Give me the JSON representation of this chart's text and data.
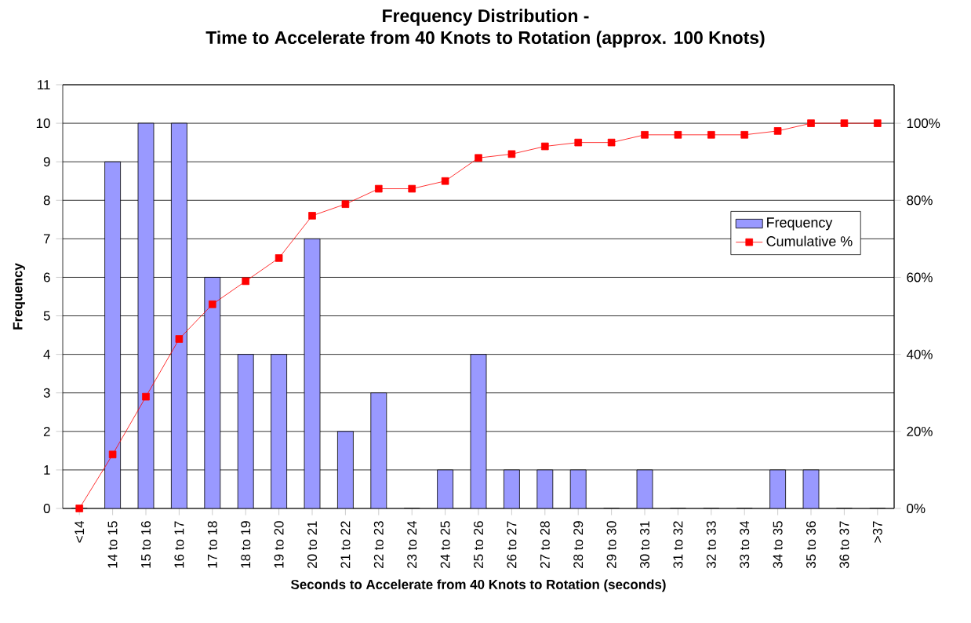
{
  "chart_data": {
    "type": "bar",
    "title": "Frequency Distribution -",
    "subtitle": "Time to Accelerate from 40 Knots to Rotation (approx. 100 Knots)",
    "xlabel": "Seconds to Accelerate from 40 Knots to Rotation (seconds)",
    "ylabel": "Frequency",
    "categories": [
      "<14",
      "14 to 15",
      "15 to 16",
      "16 to 17",
      "17 to 18",
      "18 to 19",
      "19 to 20",
      "20 to 21",
      "21 to 22",
      "22 to 23",
      "23 to 24",
      "24 to 25",
      "25 to 26",
      "26 to 27",
      "27 to 28",
      "28 to 29",
      "29 to 30",
      "30 to 31",
      "31 to 32",
      "32 to 33",
      "33 to 34",
      "34 to 35",
      "35 to 36",
      "36 to 37",
      ">37"
    ],
    "series": [
      {
        "name": "Frequency",
        "color": "#9999ff",
        "values": [
          0,
          9,
          10,
          10,
          6,
          4,
          4,
          7,
          2,
          3,
          0,
          1,
          4,
          1,
          1,
          1,
          0,
          1,
          0,
          0,
          0,
          1,
          1,
          0,
          0
        ]
      },
      {
        "name": "Cumulative %",
        "type": "line",
        "axis": "y2",
        "color": "#ff0000",
        "marker": "square",
        "values": [
          0,
          14,
          29,
          44,
          53,
          59,
          65,
          76,
          79,
          83,
          83,
          85,
          91,
          92,
          94,
          95,
          95,
          97,
          97,
          97,
          97,
          98,
          100,
          100,
          100
        ]
      }
    ],
    "ylim": [
      0,
      11
    ],
    "yticks": [
      0,
      1,
      2,
      3,
      4,
      5,
      6,
      7,
      8,
      9,
      10,
      11
    ],
    "y2lim": [
      0,
      110
    ],
    "y2ticks": [
      {
        "value": 0,
        "label": "0%"
      },
      {
        "value": 20,
        "label": "20%"
      },
      {
        "value": 40,
        "label": "40%"
      },
      {
        "value": 60,
        "label": "60%"
      },
      {
        "value": 80,
        "label": "80%"
      },
      {
        "value": 100,
        "label": "100%"
      }
    ],
    "grid": "y",
    "legend": "right"
  }
}
